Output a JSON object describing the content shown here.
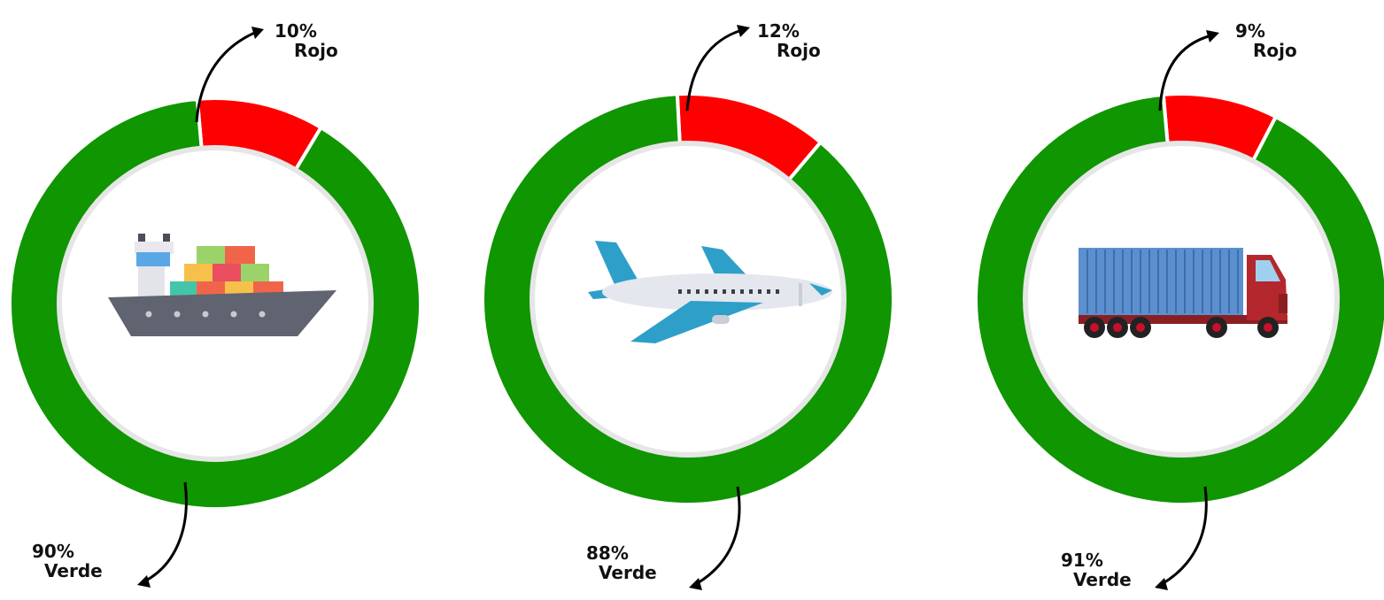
{
  "colors": {
    "verde": "#0f9600",
    "rojo": "#ff0000",
    "divider": "#ffffff",
    "inner_ring": "#e6e6e6"
  },
  "chart_data": [
    {
      "type": "pie",
      "icon": "ship-icon",
      "slices": [
        {
          "label": "Rojo",
          "value": 10,
          "display": "10%",
          "color": "#ff0000"
        },
        {
          "label": "Verde",
          "value": 90,
          "display": "90%",
          "color": "#0f9600"
        }
      ]
    },
    {
      "type": "pie",
      "icon": "airplane-icon",
      "slices": [
        {
          "label": "Rojo",
          "value": 12,
          "display": "12%",
          "color": "#ff0000"
        },
        {
          "label": "Verde",
          "value": 88,
          "display": "88%",
          "color": "#0f9600"
        }
      ]
    },
    {
      "type": "pie",
      "icon": "truck-icon",
      "slices": [
        {
          "label": "Rojo",
          "value": 9,
          "display": "9%",
          "color": "#ff0000"
        },
        {
          "label": "Verde",
          "value": 91,
          "display": "91%",
          "color": "#0f9600"
        }
      ]
    }
  ]
}
